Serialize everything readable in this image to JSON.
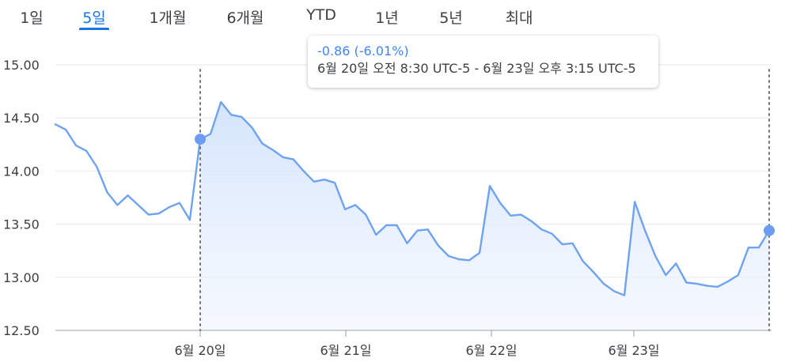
{
  "tabs": [
    {
      "label": "1일",
      "active": false
    },
    {
      "label": "5일",
      "active": true
    },
    {
      "label": "1개월",
      "active": false
    },
    {
      "label": "6개월",
      "active": false
    },
    {
      "label": "YTD",
      "active": false
    },
    {
      "label": "1년",
      "active": false
    },
    {
      "label": "5년",
      "active": false
    },
    {
      "label": "최대",
      "active": false
    }
  ],
  "tooltip": {
    "change": "-0.86 (-6.01%)",
    "range": "6월 20일 오전 8:30 UTC-5 - 6월 23일 오후 3:15 UTC-5"
  },
  "colors": {
    "line": "#6fa3f0",
    "marker": "#6b9ef0",
    "accent": "#1a73e8"
  },
  "chart_data": {
    "type": "area",
    "ylim": [
      12.5,
      15.0
    ],
    "y_ticks": [
      "15.00",
      "14.50",
      "14.00",
      "13.50",
      "13.00",
      "12.50"
    ],
    "x_ticks": [
      "6월 20일",
      "6월 21일",
      "6월 22일",
      "6월 23일"
    ],
    "grid": true,
    "selection": {
      "start_value": 14.3,
      "end_value": 13.44
    },
    "series": [
      {
        "values": [
          14.44,
          14.39,
          14.24,
          14.19,
          14.04,
          13.8,
          13.68,
          13.77,
          13.68,
          13.59,
          13.6,
          13.66,
          13.7,
          13.54,
          14.3,
          14.35,
          14.65,
          14.53,
          14.51,
          14.41,
          14.26,
          14.2,
          14.13,
          14.11,
          14.0,
          13.9,
          13.92,
          13.89,
          13.64,
          13.68,
          13.59,
          13.4,
          13.49,
          13.49,
          13.32,
          13.44,
          13.45,
          13.3,
          13.2,
          13.17,
          13.16,
          13.23,
          13.86,
          13.7,
          13.58,
          13.59,
          13.53,
          13.45,
          13.41,
          13.31,
          13.32,
          13.15,
          13.05,
          12.94,
          12.87,
          12.83,
          13.71,
          13.44,
          13.2,
          13.02,
          13.13,
          12.95,
          12.94,
          12.92,
          12.91,
          12.96,
          13.02,
          13.28,
          13.28,
          13.44
        ]
      }
    ]
  }
}
